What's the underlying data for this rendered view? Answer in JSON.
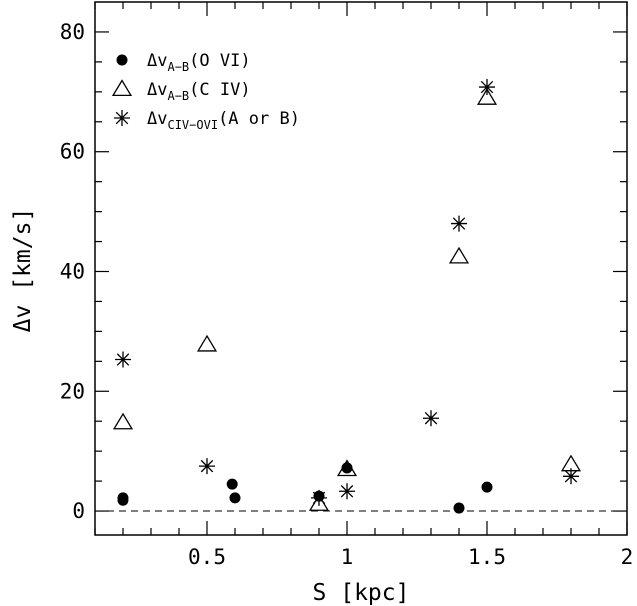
{
  "chart_data": {
    "type": "scatter",
    "xlabel": "S [kpc]",
    "ylabel": "Δv [km/s]",
    "xlim": [
      0.1,
      2.0
    ],
    "ylim": [
      -4,
      85
    ],
    "xticks": [
      0.5,
      1,
      1.5,
      2
    ],
    "xtick_labels": [
      "0.5",
      "1",
      "1.5",
      "2"
    ],
    "yticks": [
      0,
      20,
      40,
      60,
      80
    ],
    "ytick_labels": [
      "0",
      "20",
      "40",
      "60",
      "80"
    ],
    "reference_line": {
      "y": 0,
      "style": "dashed"
    },
    "grid": false,
    "legend_position": "top-left",
    "series": [
      {
        "name": "ΔvA−B(O VI)",
        "legend": {
          "base": "Δv",
          "sub": "A−B",
          "suffix": "(O VI)"
        },
        "marker": "filled-circle",
        "x": [
          0.2,
          0.2,
          0.59,
          0.6,
          0.9,
          1.0,
          1.4,
          1.5
        ],
        "y": [
          1.8,
          2.2,
          4.5,
          2.2,
          2.5,
          7.2,
          0.5,
          4.0
        ]
      },
      {
        "name": "ΔvA−B(C IV)",
        "legend": {
          "base": "Δv",
          "sub": "A−B",
          "suffix": "(C IV)"
        },
        "marker": "open-triangle",
        "x": [
          0.2,
          0.5,
          0.9,
          1.0,
          1.4,
          1.5,
          1.8
        ],
        "y": [
          14.8,
          27.8,
          1.2,
          7.0,
          42.5,
          69.0,
          7.8
        ]
      },
      {
        "name": "ΔvCIV−OVI(A or B)",
        "legend": {
          "base": "Δv",
          "sub": "CIV−OVI",
          "suffix": "(A or B)"
        },
        "marker": "asterisk",
        "x": [
          0.2,
          0.5,
          0.9,
          1.0,
          1.3,
          1.4,
          1.5,
          1.8
        ],
        "y": [
          25.3,
          7.5,
          2.2,
          3.3,
          15.5,
          48.0,
          70.8,
          5.8
        ]
      }
    ]
  }
}
